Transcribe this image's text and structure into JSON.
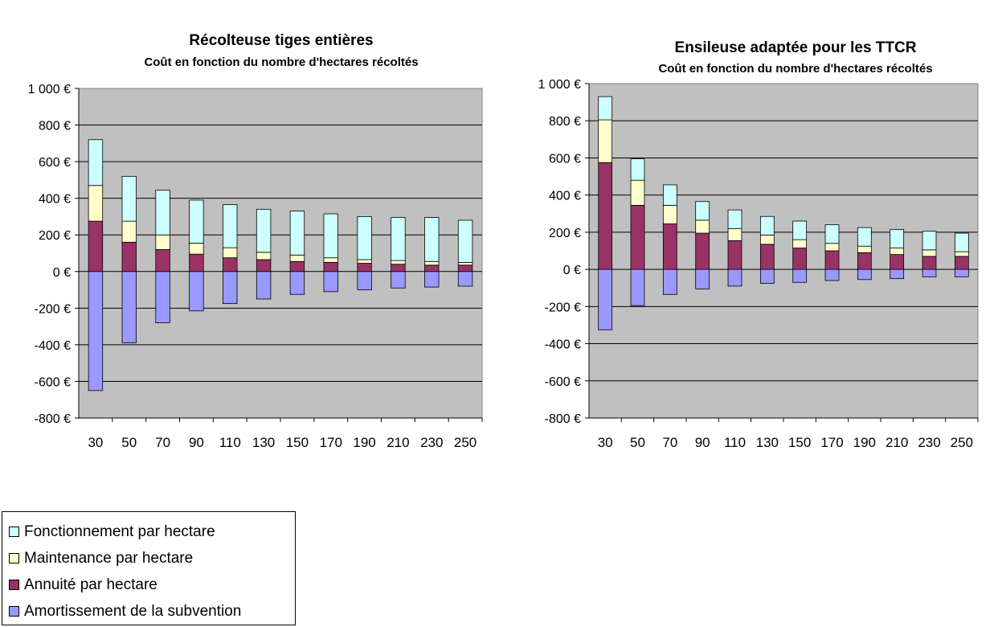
{
  "chart_data": [
    {
      "type": "bar",
      "stacked": true,
      "title": "Récolteuse tiges entières",
      "subtitle": "Coût en fonction du nombre d'hectares récoltés",
      "categories": [
        "30",
        "50",
        "70",
        "90",
        "110",
        "130",
        "150",
        "170",
        "190",
        "210",
        "230",
        "250"
      ],
      "ylim": [
        -800,
        1000
      ],
      "yticks": [
        -800,
        -600,
        -400,
        -200,
        0,
        200,
        400,
        600,
        800,
        1000
      ],
      "ytick_labels": [
        "-800 €",
        "-600 €",
        "-400 €",
        "-200 €",
        "0 €",
        "200 €",
        "400 €",
        "600 €",
        "800 €",
        "1 000 €"
      ],
      "grid": true,
      "series": [
        {
          "name": "Amortissement de la subvention",
          "values": [
            -650,
            -390,
            -280,
            -215,
            -175,
            -150,
            -125,
            -110,
            -100,
            -90,
            -85,
            -80
          ]
        },
        {
          "name": "Annuité par hectare",
          "values": [
            275,
            160,
            120,
            95,
            75,
            65,
            55,
            50,
            45,
            40,
            35,
            35
          ]
        },
        {
          "name": "Maintenance par hectare",
          "values": [
            195,
            115,
            80,
            60,
            55,
            40,
            35,
            25,
            20,
            20,
            20,
            15
          ]
        },
        {
          "name": "Fonctionnement par hectare",
          "values": [
            250,
            245,
            245,
            235,
            235,
            235,
            240,
            240,
            235,
            235,
            240,
            230
          ]
        }
      ]
    },
    {
      "type": "bar",
      "stacked": true,
      "title": "Ensileuse adaptée pour les TTCR",
      "subtitle": "Coût en fonction du nombre d'hectares récoltés",
      "categories": [
        "30",
        "50",
        "70",
        "90",
        "110",
        "130",
        "150",
        "170",
        "190",
        "210",
        "230",
        "250"
      ],
      "ylim": [
        -800,
        1000
      ],
      "yticks": [
        -800,
        -600,
        -400,
        -200,
        0,
        200,
        400,
        600,
        800,
        1000
      ],
      "ytick_labels": [
        "-800 €",
        "-600 €",
        "-400 €",
        "-200 €",
        "0 €",
        "200 €",
        "400 €",
        "600 €",
        "800 €",
        "1 000 €"
      ],
      "grid": true,
      "series": [
        {
          "name": "Amortissement de la subvention",
          "values": [
            -325,
            -195,
            -135,
            -105,
            -90,
            -75,
            -70,
            -60,
            -55,
            -50,
            -40,
            -40
          ]
        },
        {
          "name": "Annuité par hectare",
          "values": [
            575,
            345,
            245,
            195,
            155,
            135,
            115,
            100,
            90,
            80,
            70,
            70
          ]
        },
        {
          "name": "Maintenance par hectare",
          "values": [
            230,
            135,
            100,
            70,
            65,
            50,
            45,
            40,
            35,
            35,
            35,
            25
          ]
        },
        {
          "name": "Fonctionnement par hectare",
          "values": [
            125,
            115,
            110,
            100,
            100,
            100,
            100,
            100,
            100,
            100,
            100,
            100
          ]
        }
      ]
    }
  ],
  "colors": {
    "Fonctionnement par hectare": "#ccffff",
    "Maintenance par hectare": "#ffffcc",
    "Annuité par hectare": "#993366",
    "Amortissement de la subvention": "#9999ff",
    "plot_background": "#c0c0c0"
  },
  "legend": {
    "position": "bottom-left",
    "items": [
      {
        "label": "Fonctionnement par hectare",
        "color": "#ccffff"
      },
      {
        "label": "Maintenance par hectare",
        "color": "#ffffcc"
      },
      {
        "label": "Annuité par hectare",
        "color": "#993366"
      },
      {
        "label": "Amortissement de la subvention",
        "color": "#9999ff"
      }
    ]
  }
}
